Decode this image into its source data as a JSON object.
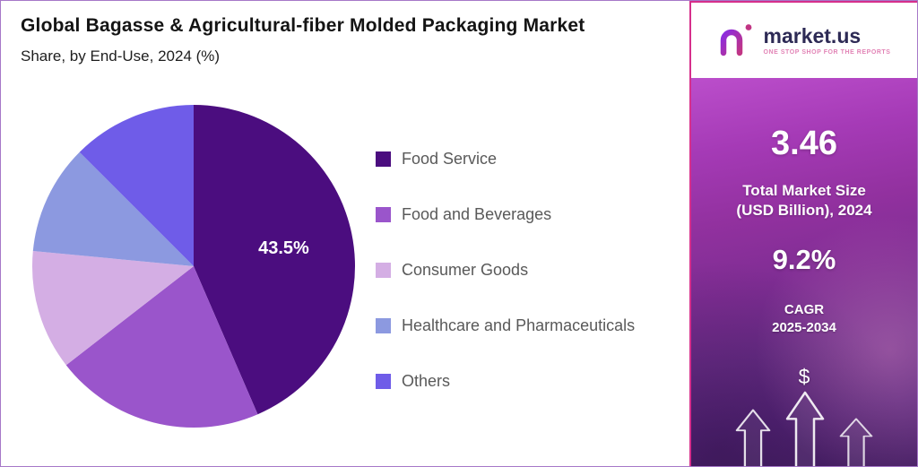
{
  "chart_data": {
    "type": "pie",
    "title": "Global Bagasse & Agricultural-fiber Molded Packaging Market",
    "subtitle": "Share, by End-Use, 2024 (%)",
    "categories": [
      "Food Service",
      "Food and Beverages",
      "Consumer Goods",
      "Healthcare and Pharmaceuticals",
      "Others"
    ],
    "values": [
      43.5,
      21,
      12,
      11,
      12.5
    ],
    "colors": [
      "#4B0D7F",
      "#9A55CB",
      "#D4AEE4",
      "#8C99E0",
      "#6F5CE8"
    ],
    "data_labels": [
      "43.5%",
      "",
      "",
      "",
      ""
    ],
    "start_angle_deg": 0,
    "direction": "clockwise",
    "legend_position": "right",
    "grid": false
  },
  "sidebar": {
    "logo": {
      "brand": "market.us",
      "tagline": "ONE STOP SHOP FOR THE REPORTS"
    },
    "stats": {
      "market_size_value": "3.46",
      "market_size_label_line1": "Total Market Size",
      "market_size_label_line2": "(USD Billion), 2024",
      "cagr_value": "9.2%",
      "cagr_label": "CAGR",
      "cagr_period": "2025-2034",
      "dollar_symbol": "$"
    }
  }
}
